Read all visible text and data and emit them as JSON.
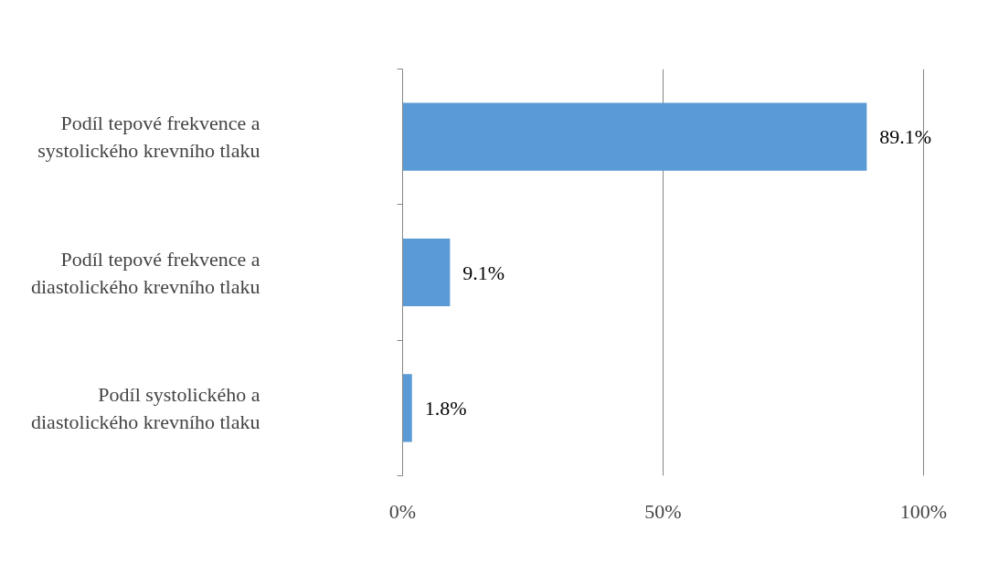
{
  "chart_data": {
    "type": "bar",
    "orientation": "horizontal",
    "categories": [
      "Podíl tepové frekvence a systolického krevního tlaku",
      "Podíl tepové frekvence a diastolického krevního tlaku",
      "Podíl systolického a diastolického krevního tlaku"
    ],
    "values": [
      89.1,
      9.1,
      1.8
    ],
    "color": "#5b9bd5",
    "value_labels": [
      "89.1%",
      "9.1%",
      "1.8%"
    ],
    "xlim": [
      0,
      100
    ],
    "xticks": [
      {
        "value": 0,
        "label": "0%"
      },
      {
        "value": 50,
        "label": "50%"
      },
      {
        "value": 100,
        "label": "100%"
      }
    ],
    "grid": "x"
  }
}
